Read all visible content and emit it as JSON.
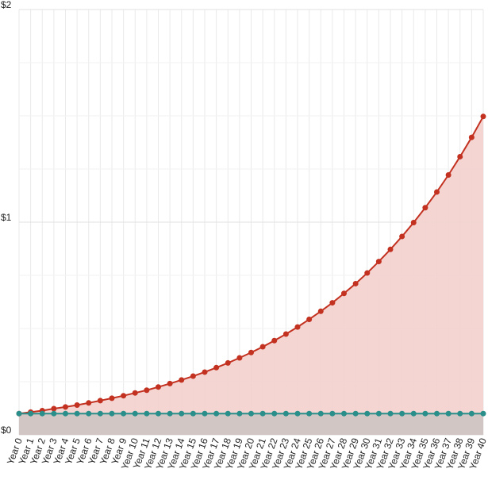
{
  "chart_data": {
    "type": "area",
    "categories": [
      "Year 0",
      "Year 1",
      "Year 2",
      "Year 3",
      "Year 4",
      "Year 5",
      "Year 6",
      "Year 7",
      "Year 8",
      "Year 9",
      "Year 10",
      "Year 11",
      "Year 12",
      "Year 13",
      "Year 14",
      "Year 15",
      "Year 16",
      "Year 17",
      "Year 18",
      "Year 19",
      "Year 20",
      "Year 21",
      "Year 22",
      "Year 23",
      "Year 24",
      "Year 25",
      "Year 26",
      "Year 27",
      "Year 28",
      "Year 29",
      "Year 30",
      "Year 31",
      "Year 32",
      "Year 33",
      "Year 34",
      "Year 35",
      "Year 36",
      "Year 37",
      "Year 38",
      "Year 39",
      "Year 40"
    ],
    "series": [
      {
        "color": "#c33120",
        "fill": "#f3d0cd",
        "values": [
          0.1,
          0.107,
          0.114,
          0.123,
          0.131,
          0.14,
          0.15,
          0.161,
          0.172,
          0.184,
          0.197,
          0.21,
          0.225,
          0.241,
          0.258,
          0.276,
          0.295,
          0.316,
          0.338,
          0.362,
          0.387,
          0.414,
          0.443,
          0.474,
          0.507,
          0.543,
          0.581,
          0.621,
          0.665,
          0.711,
          0.761,
          0.815,
          0.872,
          0.933,
          0.998,
          1.068,
          1.142,
          1.222,
          1.308,
          1.399,
          1.497
        ]
      },
      {
        "color": "#2a8f8a",
        "fill": "#cdc4c1",
        "values": [
          0.1,
          0.1,
          0.1,
          0.1,
          0.1,
          0.1,
          0.1,
          0.1,
          0.1,
          0.1,
          0.1,
          0.1,
          0.1,
          0.1,
          0.1,
          0.1,
          0.1,
          0.1,
          0.1,
          0.1,
          0.1,
          0.1,
          0.1,
          0.1,
          0.1,
          0.1,
          0.1,
          0.1,
          0.1,
          0.1,
          0.1,
          0.1,
          0.1,
          0.1,
          0.1,
          0.1,
          0.1,
          0.1,
          0.1,
          0.1,
          0.1
        ]
      }
    ],
    "ylim": [
      0,
      2
    ],
    "yticks": [
      {
        "value": 0,
        "label": "$0"
      },
      {
        "value": 1,
        "label": "$1"
      },
      {
        "value": 2,
        "label": "$2"
      }
    ],
    "grid": true
  }
}
